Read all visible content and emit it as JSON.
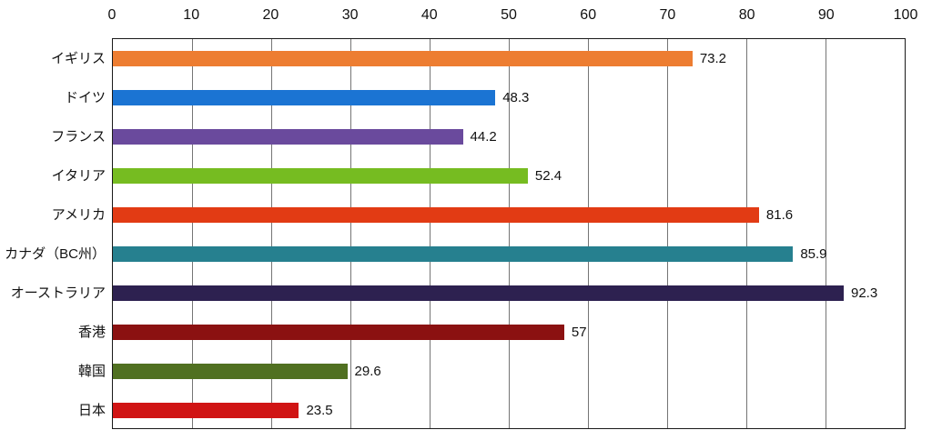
{
  "chart_data": {
    "type": "bar",
    "orientation": "horizontal",
    "title": "",
    "xlabel": "",
    "ylabel": "",
    "categories": [
      "イギリス",
      "ドイツ",
      "フランス",
      "イタリア",
      "アメリカ",
      "カナダ（BC州）",
      "オーストラリア",
      "香港",
      "韓国",
      "日本"
    ],
    "values": [
      73.2,
      48.3,
      44.2,
      52.4,
      81.6,
      85.9,
      92.3,
      57,
      29.6,
      23.5
    ],
    "value_labels": [
      "73.2",
      "48.3",
      "44.2",
      "52.4",
      "81.6",
      "85.9",
      "92.3",
      "57",
      "29.6",
      "23.5"
    ],
    "bar_colors": [
      "#ED7D31",
      "#1B74D3",
      "#6A4A9D",
      "#76BC21",
      "#E23B14",
      "#26808F",
      "#2D2150",
      "#8B1111",
      "#507021",
      "#D01414"
    ],
    "xlim": [
      0,
      100
    ],
    "xticks": [
      0,
      10,
      20,
      30,
      40,
      50,
      60,
      70,
      80,
      90,
      100
    ],
    "tick_position": "top",
    "grid": true,
    "gridline_color": "#757575",
    "axis_border_color": "#1a1a1a",
    "background_color": "#ffffff",
    "legend": false
  }
}
